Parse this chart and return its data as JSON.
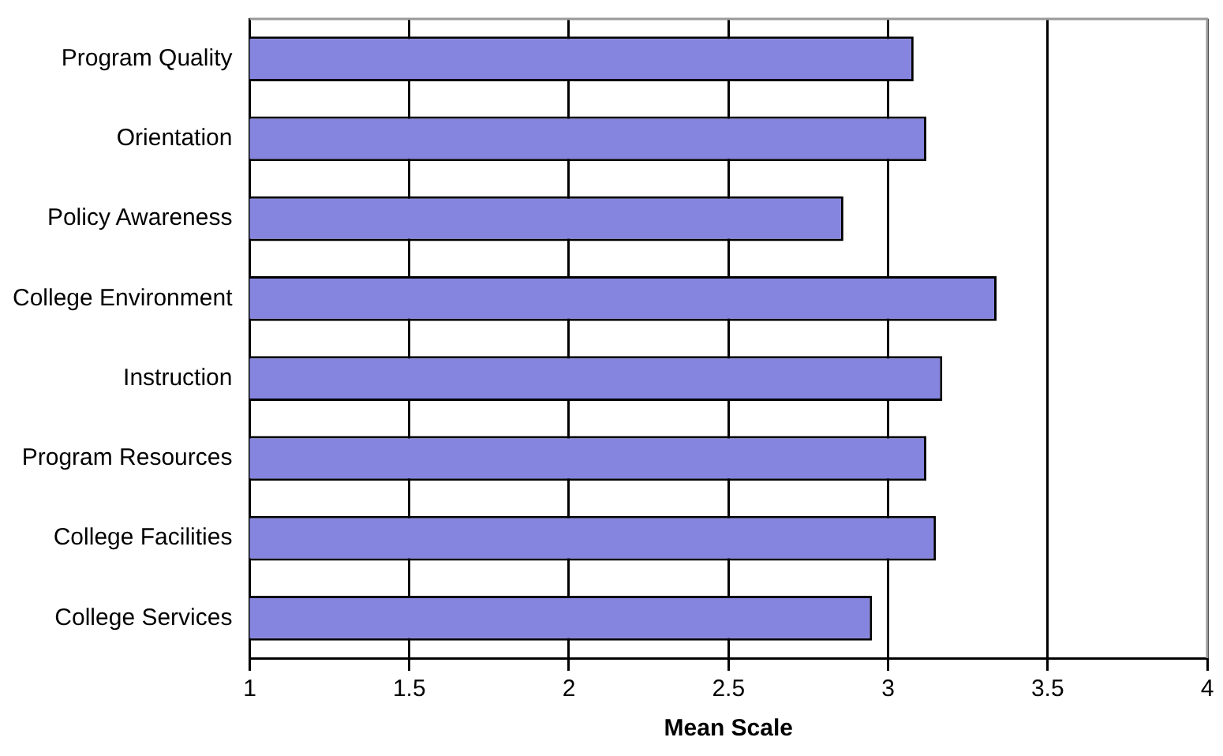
{
  "chart_data": {
    "type": "bar",
    "orientation": "horizontal",
    "xlabel": "Mean Scale",
    "categories": [
      "Program Quality",
      "Orientation",
      "Policy Awareness",
      "College Environment",
      "Instruction",
      "Program Resources",
      "College Facilities",
      "College Services"
    ],
    "values": [
      3.08,
      3.12,
      2.86,
      3.34,
      3.17,
      3.12,
      3.15,
      2.95
    ],
    "color": "#8585e0",
    "xlim": [
      1,
      4
    ],
    "xticks": [
      1,
      1.5,
      2,
      2.5,
      3,
      3.5,
      4
    ],
    "grid": "x",
    "legend": false
  }
}
